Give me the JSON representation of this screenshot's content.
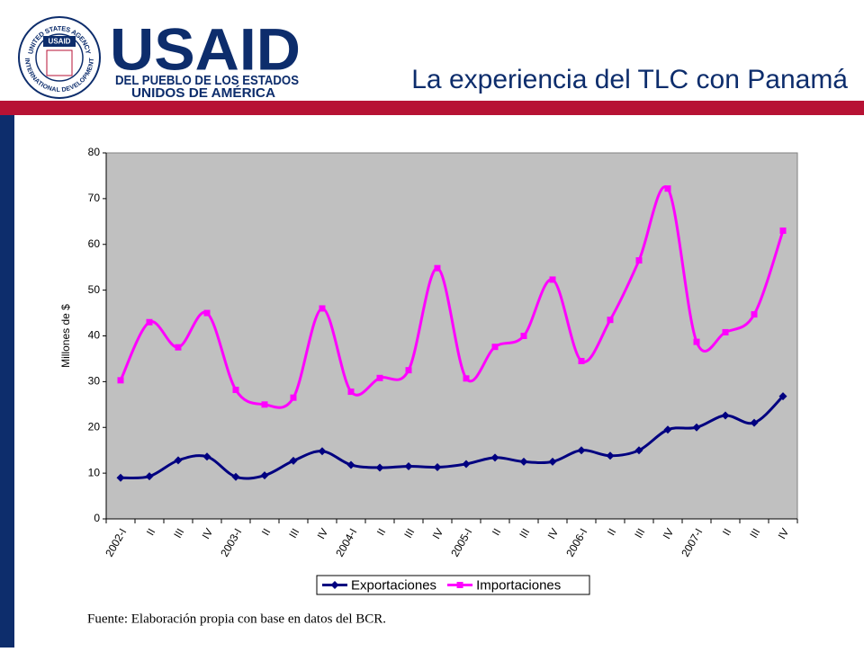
{
  "header": {
    "logo": {
      "wordmark": "USAID",
      "line1": "DEL PUEBLO DE LOS ESTADOS",
      "line2": "UNIDOS DE AMÉRICA",
      "seal_top": "UNITED STATES AGENCY",
      "seal_bottom": "INTERNATIONAL DEVELOPMENT",
      "seal_center": "USAID"
    },
    "title": "La experiencia del TLC con Panamá"
  },
  "chart_data": {
    "type": "line",
    "ylabel": "Millones de $",
    "categories": [
      "2002-I",
      "II",
      "III",
      "IV",
      "2003-I",
      "II",
      "III",
      "IV",
      "2004-I",
      "II",
      "III",
      "IV",
      "2005-I",
      "II",
      "III",
      "IV",
      "2006-I",
      "II",
      "III",
      "IV",
      "2007-I",
      "II",
      "III",
      "IV"
    ],
    "series": [
      {
        "name": "Exportaciones",
        "color": "#000080",
        "marker": "diamond",
        "values": [
          9,
          9.3,
          12.8,
          13.6,
          9.2,
          9.5,
          12.7,
          14.8,
          11.8,
          11.2,
          11.5,
          11.3,
          12,
          13.4,
          12.5,
          12.5,
          15,
          13.8,
          15,
          19.5,
          20,
          22.6,
          21,
          26.8
        ]
      },
      {
        "name": "Importaciones",
        "color": "#ff00ff",
        "marker": "square",
        "values": [
          30.3,
          43,
          37.5,
          45,
          28.2,
          25,
          26.5,
          46,
          27.8,
          30.8,
          32.5,
          54.8,
          30.7,
          37.6,
          40,
          52.3,
          34.5,
          43.5,
          56.5,
          72.2,
          38.7,
          40.8,
          44.7,
          63
        ]
      }
    ],
    "ylim": [
      0,
      80
    ],
    "yticks": [
      0,
      10,
      20,
      30,
      40,
      50,
      60,
      70,
      80
    ],
    "grid": false,
    "legend": "bottom",
    "background": "#c0c0c0",
    "smooth": true
  },
  "source": "Fuente: Elaboración propia con base en datos del BCR."
}
